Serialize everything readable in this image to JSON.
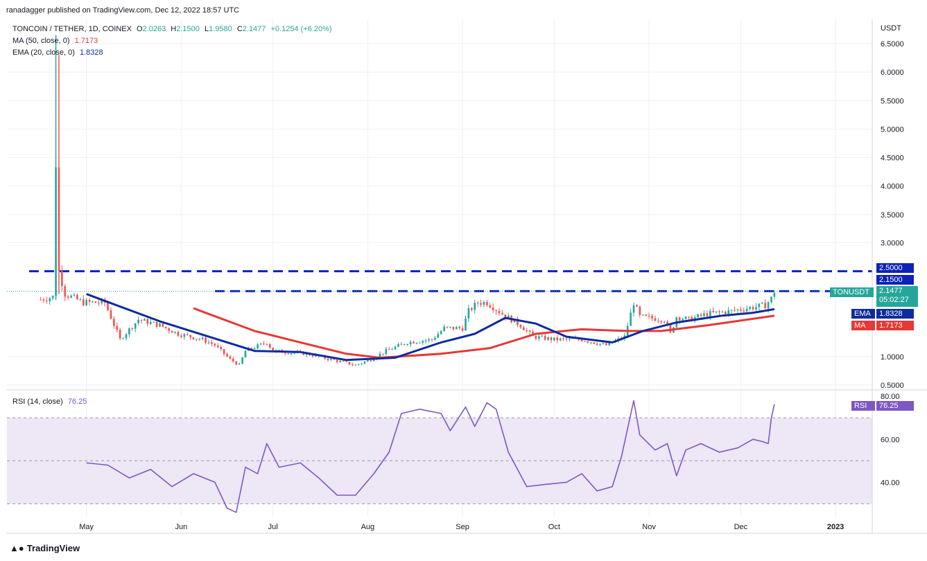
{
  "header": {
    "published": "ranadagger published on TradingView.com, Dec 12, 2022 18:57 UTC"
  },
  "legend": {
    "symbol": "TONCOIN / TETHER, 1D, COINEX",
    "ohlc_o_label": "O",
    "ohlc_o": "2.0263",
    "ohlc_h_label": "H",
    "ohlc_h": "2.1500",
    "ohlc_l_label": "L",
    "ohlc_l": "1.9580",
    "ohlc_c_label": "C",
    "ohlc_c": "2.1477",
    "change": "+0.1254 (+6.20%)",
    "ma_label": "MA (50, close, 0)",
    "ma_value": "1.7173",
    "ema_label": "EMA (20, close, 0)",
    "ema_value": "1.8328",
    "rsi_label": "RSI (14, close)",
    "rsi_value": "76.25"
  },
  "badges": {
    "price_level_top": "2.5000",
    "price_level_mid": "2.1500",
    "symbol_tag": "TONUSDT",
    "last_price": "2.1477",
    "countdown": "05:02:27",
    "ema_tag": "EMA",
    "ema_value": "1.8328",
    "ma_tag": "MA",
    "ma_value": "1.7173",
    "rsi_tag": "RSI",
    "rsi_value": "76.25"
  },
  "footer": {
    "brand": "TradingView"
  },
  "colors": {
    "up": "#26a69a",
    "down": "#ef5350",
    "ema": "#0d2c9c",
    "ma": "#e53935",
    "rsi": "#7e57c2",
    "rsi_band": "#ede7f6",
    "level": "#0d23b8",
    "grid": "#eef0f3"
  },
  "chart_data": [
    {
      "type": "candlestick",
      "title": "TONCOIN / TETHER, 1D, COINEX",
      "y_axis_label": "USDT",
      "ylim": [
        0.4,
        6.85
      ],
      "y_ticks": [
        "6.5000",
        "6.0000",
        "5.5000",
        "5.0000",
        "4.5000",
        "4.0000",
        "3.5000",
        "3.0000",
        "1.0000",
        "0.5000"
      ],
      "y_tick_values": [
        6.5,
        6.0,
        5.5,
        5.0,
        4.5,
        4.0,
        3.5,
        3.0,
        1.0,
        0.5
      ],
      "x_ticks": [
        "May",
        "Jun",
        "Jul",
        "Aug",
        "Sep",
        "Oct",
        "Nov",
        "Dec",
        "2023"
      ],
      "x_tick_dates": [
        "2022-05-01",
        "2022-06-01",
        "2022-07-01",
        "2022-08-01",
        "2022-09-01",
        "2022-10-01",
        "2022-11-01",
        "2022-12-01",
        "2023-01-01"
      ],
      "x_range": [
        "2022-04-05",
        "2023-01-13"
      ],
      "horizontal_levels": [
        2.5,
        2.15
      ],
      "last_price": 2.1477,
      "close_anchors": [
        [
          "2022-04-16",
          2.0
        ],
        [
          "2022-04-20",
          2.05
        ],
        [
          "2022-04-21",
          4.4
        ],
        [
          "2022-04-22",
          2.5
        ],
        [
          "2022-04-24",
          2.1
        ],
        [
          "2022-04-30",
          1.95
        ],
        [
          "2022-05-07",
          1.95
        ],
        [
          "2022-05-12",
          1.3
        ],
        [
          "2022-05-18",
          1.65
        ],
        [
          "2022-05-25",
          1.55
        ],
        [
          "2022-05-31",
          1.4
        ],
        [
          "2022-06-08",
          1.3
        ],
        [
          "2022-06-12",
          1.2
        ],
        [
          "2022-06-17",
          0.95
        ],
        [
          "2022-06-20",
          0.85
        ],
        [
          "2022-06-22",
          1.1
        ],
        [
          "2022-06-29",
          1.25
        ],
        [
          "2022-07-01",
          1.1
        ],
        [
          "2022-07-12",
          1.05
        ],
        [
          "2022-07-20",
          0.95
        ],
        [
          "2022-07-28",
          0.85
        ],
        [
          "2022-08-02",
          0.95
        ],
        [
          "2022-08-07",
          1.1
        ],
        [
          "2022-08-14",
          1.25
        ],
        [
          "2022-08-22",
          1.3
        ],
        [
          "2022-08-26",
          1.5
        ],
        [
          "2022-09-01",
          1.5
        ],
        [
          "2022-09-03",
          1.8
        ],
        [
          "2022-09-06",
          1.95
        ],
        [
          "2022-09-09",
          1.95
        ],
        [
          "2022-09-14",
          1.75
        ],
        [
          "2022-09-20",
          1.55
        ],
        [
          "2022-09-24",
          1.35
        ],
        [
          "2022-10-01",
          1.3
        ],
        [
          "2022-10-10",
          1.3
        ],
        [
          "2022-10-18",
          1.2
        ],
        [
          "2022-10-24",
          1.35
        ],
        [
          "2022-10-27",
          1.95
        ],
        [
          "2022-10-29",
          1.7
        ],
        [
          "2022-11-06",
          1.65
        ],
        [
          "2022-11-08",
          1.4
        ],
        [
          "2022-11-10",
          1.7
        ],
        [
          "2022-11-14",
          1.65
        ],
        [
          "2022-11-20",
          1.75
        ],
        [
          "2022-11-28",
          1.8
        ],
        [
          "2022-12-03",
          1.85
        ],
        [
          "2022-12-09",
          1.9
        ],
        [
          "2022-12-11",
          2.02
        ],
        [
          "2022-12-12",
          2.1477
        ]
      ],
      "ema_20": [
        [
          "2022-05-01",
          2.1
        ],
        [
          "2022-05-10",
          1.92
        ],
        [
          "2022-05-25",
          1.62
        ],
        [
          "2022-06-10",
          1.35
        ],
        [
          "2022-06-25",
          1.1
        ],
        [
          "2022-07-10",
          1.08
        ],
        [
          "2022-07-25",
          0.94
        ],
        [
          "2022-08-10",
          0.98
        ],
        [
          "2022-08-25",
          1.25
        ],
        [
          "2022-09-05",
          1.4
        ],
        [
          "2022-09-15",
          1.68
        ],
        [
          "2022-09-25",
          1.58
        ],
        [
          "2022-10-05",
          1.35
        ],
        [
          "2022-10-20",
          1.25
        ],
        [
          "2022-10-30",
          1.45
        ],
        [
          "2022-11-10",
          1.6
        ],
        [
          "2022-11-25",
          1.72
        ],
        [
          "2022-12-05",
          1.77
        ],
        [
          "2022-12-12",
          1.8328
        ]
      ],
      "ma_50": [
        [
          "2022-06-05",
          1.85
        ],
        [
          "2022-06-10",
          1.75
        ],
        [
          "2022-06-25",
          1.45
        ],
        [
          "2022-07-10",
          1.25
        ],
        [
          "2022-07-25",
          1.05
        ],
        [
          "2022-08-05",
          0.98
        ],
        [
          "2022-08-25",
          1.05
        ],
        [
          "2022-09-10",
          1.15
        ],
        [
          "2022-09-25",
          1.4
        ],
        [
          "2022-10-10",
          1.48
        ],
        [
          "2022-10-25",
          1.45
        ],
        [
          "2022-11-05",
          1.45
        ],
        [
          "2022-11-20",
          1.55
        ],
        [
          "2022-12-12",
          1.7173
        ]
      ]
    },
    {
      "type": "line",
      "title": "RSI (14, close)",
      "ylim": [
        24,
        82
      ],
      "y_ticks": [
        "80.00",
        "60.00",
        "40.00"
      ],
      "y_tick_values": [
        80,
        60,
        40
      ],
      "band": [
        30,
        70
      ],
      "midline": 50,
      "last_value": 76.25,
      "points": [
        [
          "2022-05-01",
          49
        ],
        [
          "2022-05-08",
          48
        ],
        [
          "2022-05-15",
          42
        ],
        [
          "2022-05-22",
          46
        ],
        [
          "2022-05-29",
          38
        ],
        [
          "2022-06-05",
          44
        ],
        [
          "2022-06-12",
          40
        ],
        [
          "2022-06-16",
          28
        ],
        [
          "2022-06-19",
          26
        ],
        [
          "2022-06-22",
          47
        ],
        [
          "2022-06-26",
          44
        ],
        [
          "2022-06-29",
          58
        ],
        [
          "2022-07-03",
          47
        ],
        [
          "2022-07-10",
          49
        ],
        [
          "2022-07-16",
          42
        ],
        [
          "2022-07-22",
          34
        ],
        [
          "2022-07-28",
          34
        ],
        [
          "2022-08-03",
          44
        ],
        [
          "2022-08-08",
          54
        ],
        [
          "2022-08-12",
          72
        ],
        [
          "2022-08-18",
          74
        ],
        [
          "2022-08-25",
          72
        ],
        [
          "2022-08-28",
          64
        ],
        [
          "2022-09-02",
          75
        ],
        [
          "2022-09-05",
          66
        ],
        [
          "2022-09-09",
          77
        ],
        [
          "2022-09-12",
          74
        ],
        [
          "2022-09-16",
          54
        ],
        [
          "2022-09-22",
          38
        ],
        [
          "2022-09-28",
          39
        ],
        [
          "2022-10-05",
          40
        ],
        [
          "2022-10-10",
          44
        ],
        [
          "2022-10-15",
          36
        ],
        [
          "2022-10-20",
          38
        ],
        [
          "2022-10-23",
          52
        ],
        [
          "2022-10-27",
          78
        ],
        [
          "2022-10-29",
          62
        ],
        [
          "2022-11-03",
          55
        ],
        [
          "2022-11-07",
          58
        ],
        [
          "2022-11-10",
          43
        ],
        [
          "2022-11-13",
          55
        ],
        [
          "2022-11-18",
          58
        ],
        [
          "2022-11-24",
          54
        ],
        [
          "2022-11-30",
          56
        ],
        [
          "2022-12-05",
          60
        ],
        [
          "2022-12-08",
          59
        ],
        [
          "2022-12-10",
          58
        ],
        [
          "2022-12-11",
          70
        ],
        [
          "2022-12-12",
          76.25
        ]
      ]
    }
  ]
}
